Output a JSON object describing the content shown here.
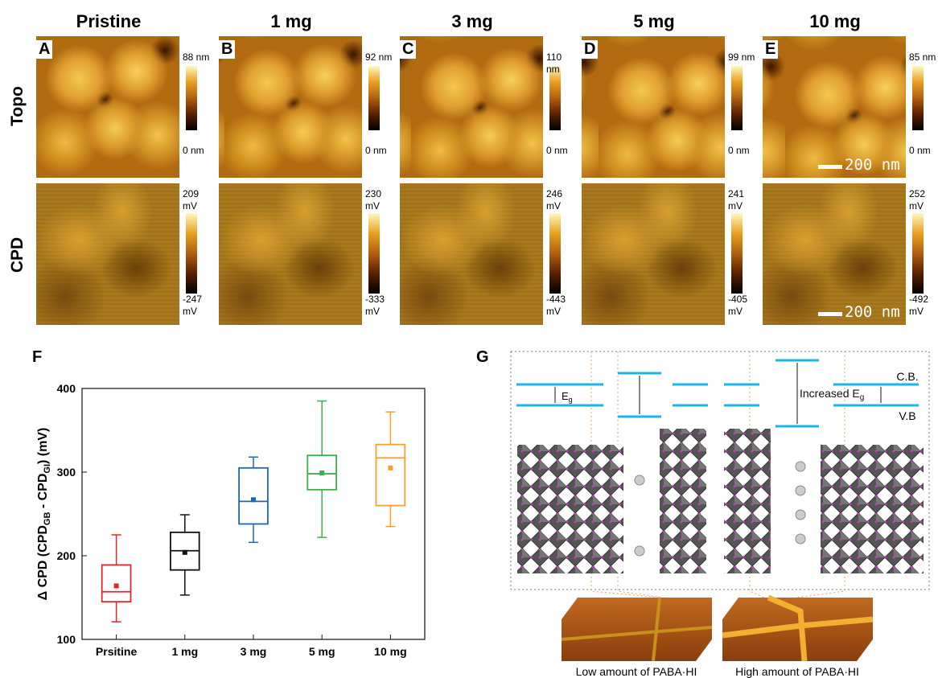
{
  "columns": [
    "Pristine",
    "1 mg",
    "3 mg",
    "5 mg",
    "10 mg"
  ],
  "panel_letters": [
    "A",
    "B",
    "C",
    "D",
    "E"
  ],
  "row_labels": [
    "Topo",
    "CPD"
  ],
  "topo_scales": [
    {
      "max": "88 nm",
      "min": "0 nm"
    },
    {
      "max": "92 nm",
      "min": "0 nm"
    },
    {
      "max": "110 nm",
      "min": "0 nm"
    },
    {
      "max": "99 nm",
      "min": "0 nm"
    },
    {
      "max": "85 nm",
      "min": "0 nm"
    }
  ],
  "cpd_scales": [
    {
      "max": "209 mV",
      "min": "-247 mV"
    },
    {
      "max": "230 mV",
      "min": "-333 mV"
    },
    {
      "max": "246 mV",
      "min": "-443 mV"
    },
    {
      "max": "241 mV",
      "min": "-405 mV"
    },
    {
      "max": "252 mV",
      "min": "-492 mV"
    }
  ],
  "scale_bar": "200 nm",
  "chart_data": {
    "type": "box",
    "letter": "F",
    "y_label": [
      "Δ CPD (CPD",
      "GB",
      " - CPD",
      "GI",
      ") (mV)"
    ],
    "categories": [
      "Prsitine",
      "1 mg",
      "3 mg",
      "5 mg",
      "10 mg"
    ],
    "colors": [
      "#e3262c",
      "#111111",
      "#1f67ad",
      "#3db04a",
      "#f5a031"
    ],
    "min": [
      121,
      153,
      216,
      222,
      235
    ],
    "q1": [
      145,
      183,
      238,
      279,
      260
    ],
    "median": [
      157,
      206,
      265,
      298,
      317
    ],
    "q3": [
      189,
      228,
      305,
      320,
      333
    ],
    "max": [
      225,
      249,
      318,
      385,
      372
    ],
    "mean": [
      164,
      204,
      267,
      299,
      305
    ],
    "ylim": [
      100,
      400
    ],
    "yticks": [
      100,
      200,
      300,
      400
    ]
  },
  "diagram": {
    "letter": "G",
    "cb": "C.B.",
    "vb": "V.B",
    "eg": [
      "E",
      "g"
    ],
    "increased_eg": [
      "Increased E",
      "g"
    ],
    "low_label": "Low amount of PABA·HI",
    "high_label": "High amount of PABA·HI"
  }
}
